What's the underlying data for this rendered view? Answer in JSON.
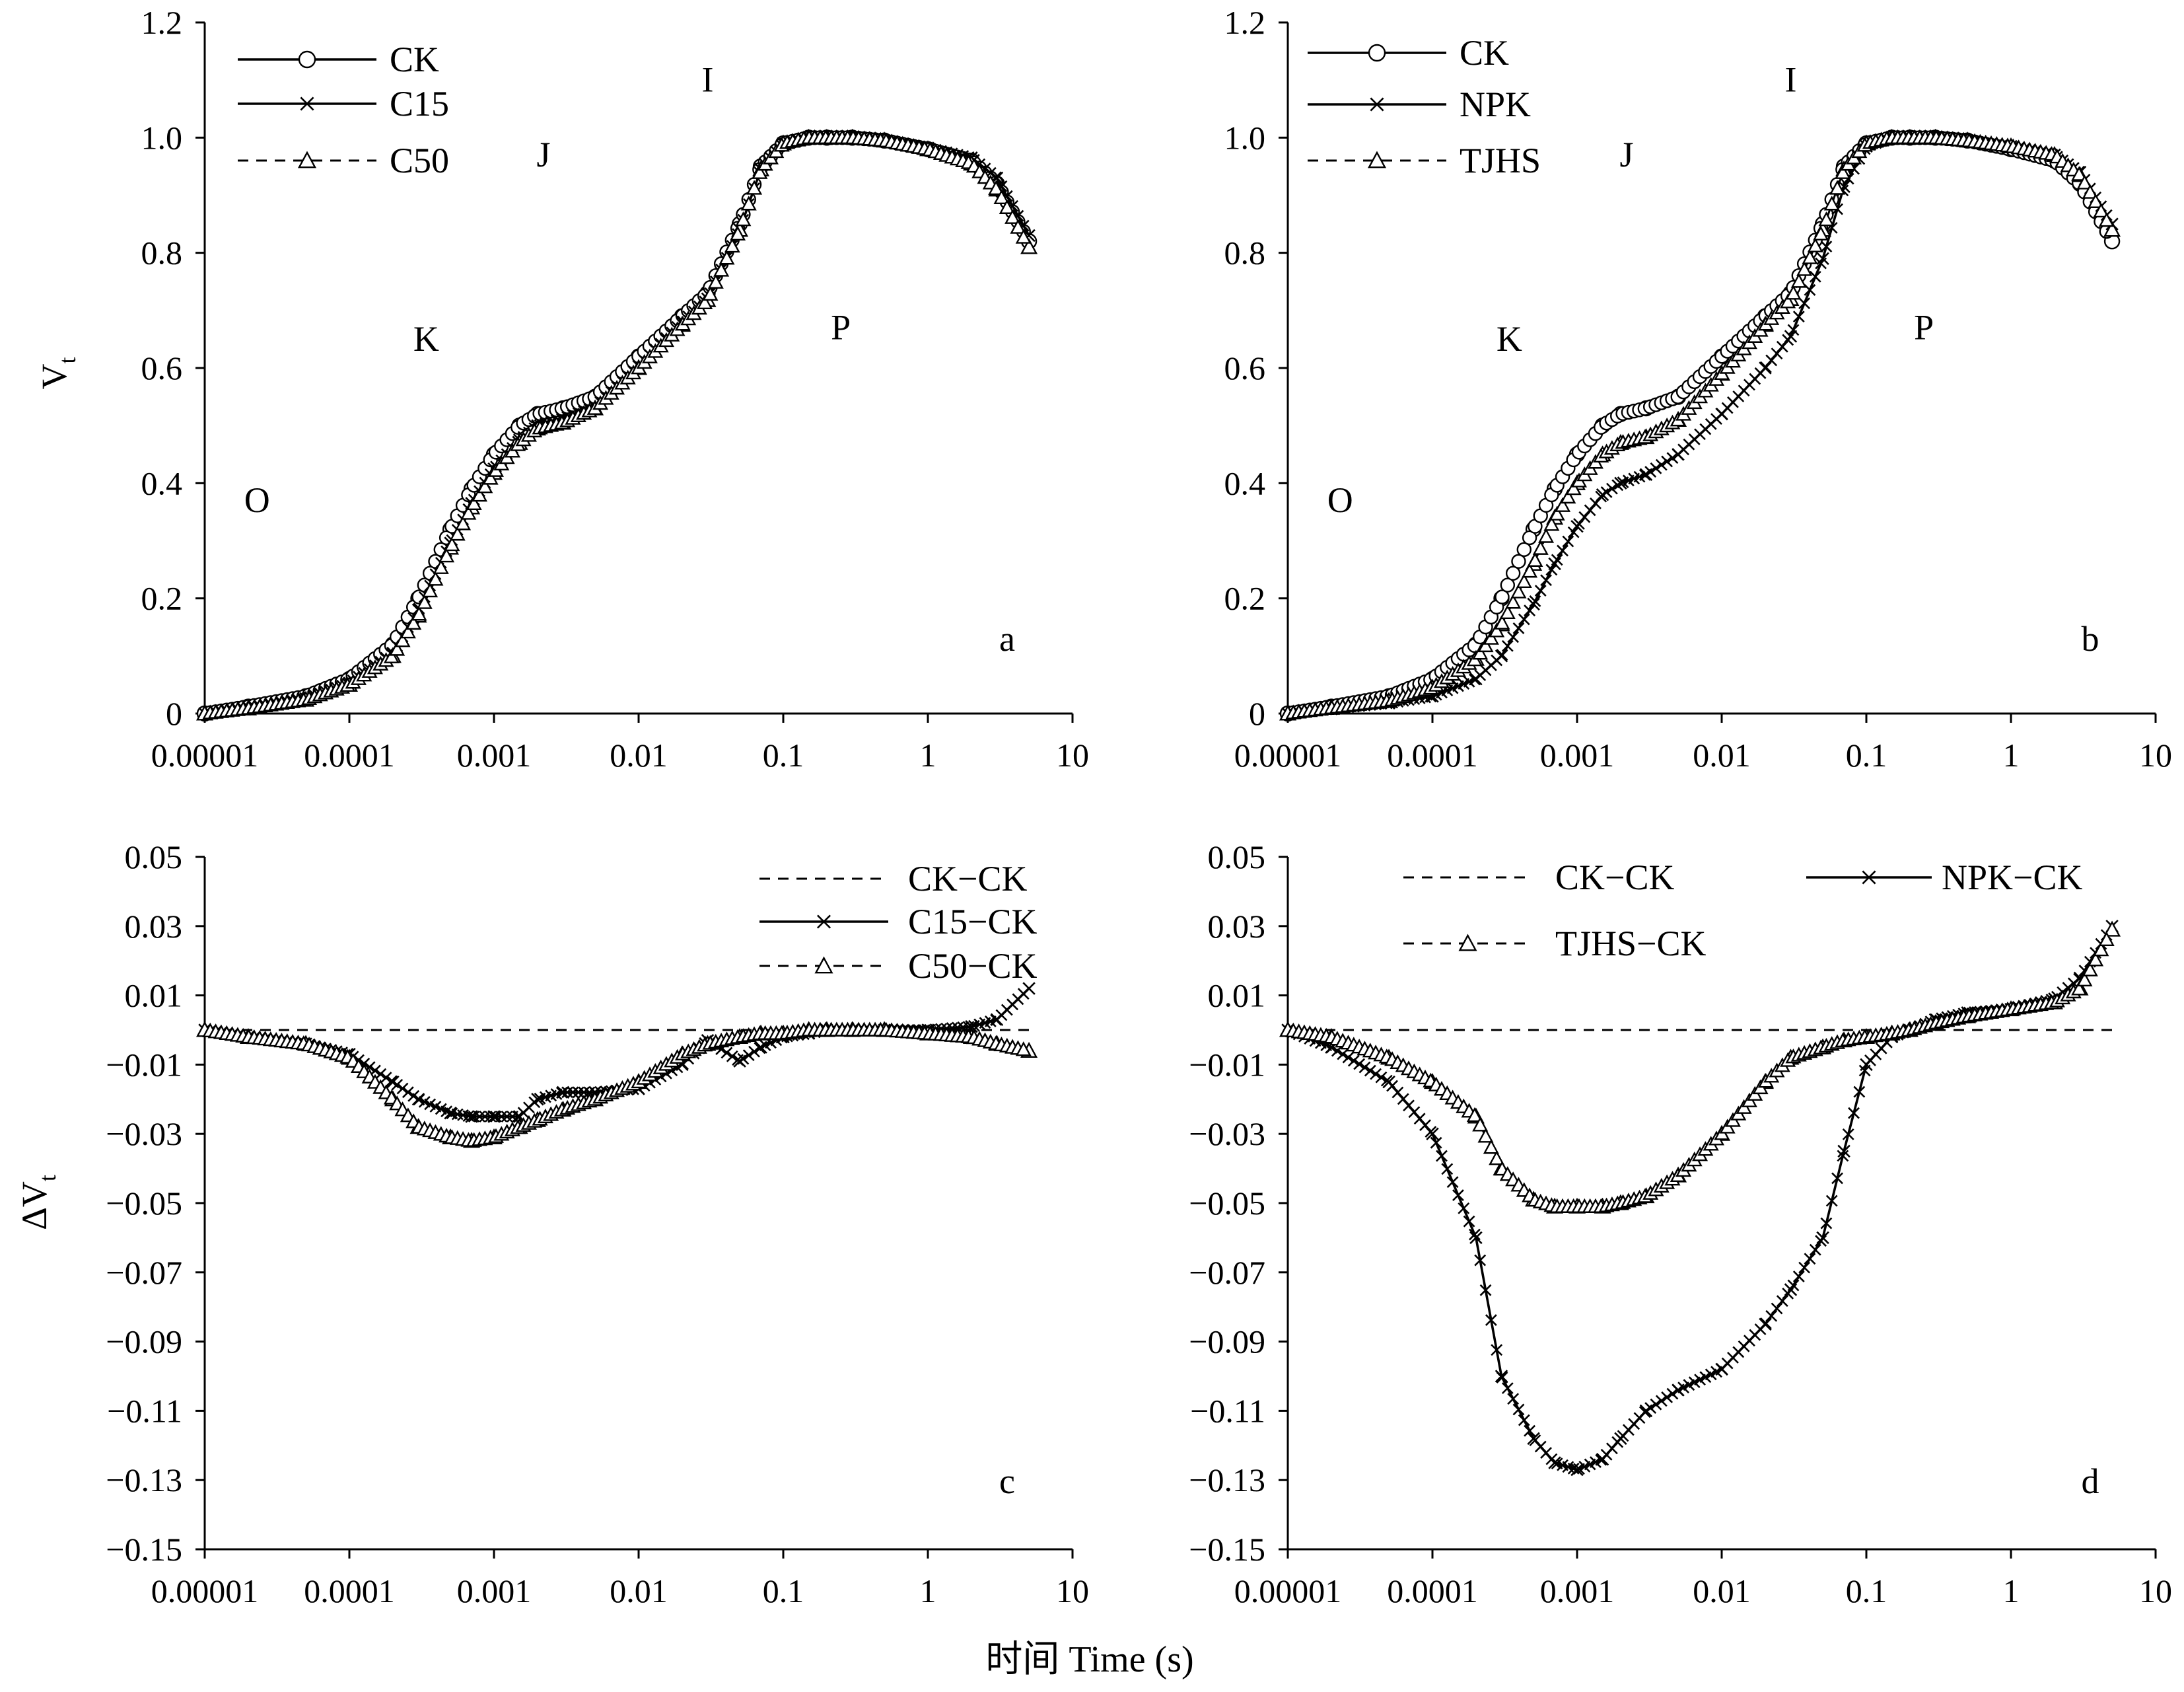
{
  "figure": {
    "xlabel": "时间 Time (s)",
    "colors": {
      "line": "#000000",
      "marker_fill": "#ffffff",
      "background": "#ffffff"
    }
  },
  "chart_data": [
    {
      "panel": "a",
      "type": "line",
      "xscale": "log",
      "xlim": [
        1e-05,
        10
      ],
      "ylim": [
        0,
        1.2
      ],
      "x_ticks": [
        "0.00001",
        "0.0001",
        "0.001",
        "0.01",
        "0.1",
        "1",
        "10"
      ],
      "y_ticks": [
        "0",
        "0.2",
        "0.4",
        "0.6",
        "0.8",
        "1.0",
        "1.2"
      ],
      "ylabel": "Vt",
      "phase_labels": [
        {
          "text": "O",
          "x": 2.3e-05,
          "y": 0.35
        },
        {
          "text": "K",
          "x": 0.00034,
          "y": 0.63
        },
        {
          "text": "J",
          "x": 0.0022,
          "y": 0.95
        },
        {
          "text": "I",
          "x": 0.03,
          "y": 1.08
        },
        {
          "text": "P",
          "x": 0.25,
          "y": 0.65
        }
      ],
      "legend": {
        "position": "top-left"
      },
      "series": [
        {
          "name": "CK",
          "style": "solid",
          "marker": "circle",
          "x": [
            1e-05,
            2e-05,
            5e-05,
            0.0001,
            0.0002,
            0.0003,
            0.0005,
            0.0007,
            0.001,
            0.0015,
            0.002,
            0.003,
            0.005,
            0.01,
            0.02,
            0.03,
            0.05,
            0.07,
            0.1,
            0.15,
            0.2,
            0.3,
            0.5,
            1,
            2,
            3,
            5
          ],
          "y": [
            0,
            0.012,
            0.03,
            0.06,
            0.12,
            0.2,
            0.32,
            0.39,
            0.45,
            0.5,
            0.52,
            0.53,
            0.55,
            0.62,
            0.69,
            0.73,
            0.85,
            0.95,
            0.99,
            1.0,
            1.0,
            1.0,
            0.995,
            0.98,
            0.96,
            0.92,
            0.82
          ]
        },
        {
          "name": "C15",
          "style": "solid",
          "marker": "x",
          "x": [
            1e-05,
            2e-05,
            5e-05,
            0.0001,
            0.0002,
            0.0003,
            0.0005,
            0.0007,
            0.001,
            0.0015,
            0.002,
            0.003,
            0.005,
            0.01,
            0.02,
            0.03,
            0.05,
            0.07,
            0.1,
            0.15,
            0.2,
            0.3,
            0.5,
            1,
            2,
            3,
            5
          ],
          "y": [
            0,
            0.01,
            0.026,
            0.053,
            0.105,
            0.18,
            0.296,
            0.365,
            0.425,
            0.475,
            0.5,
            0.512,
            0.532,
            0.603,
            0.68,
            0.72,
            0.84,
            0.945,
            0.99,
            1.0,
            1.0,
            1.0,
            0.995,
            0.982,
            0.965,
            0.93,
            0.83
          ]
        },
        {
          "name": "C50",
          "style": "dashed",
          "marker": "triangle",
          "x": [
            1e-05,
            2e-05,
            5e-05,
            0.0001,
            0.0002,
            0.0003,
            0.0005,
            0.0007,
            0.001,
            0.0015,
            0.002,
            0.003,
            0.005,
            0.01,
            0.02,
            0.03,
            0.05,
            0.07,
            0.1,
            0.15,
            0.2,
            0.3,
            0.5,
            1,
            2,
            3,
            5
          ],
          "y": [
            0,
            0.009,
            0.024,
            0.05,
            0.1,
            0.17,
            0.288,
            0.358,
            0.418,
            0.47,
            0.495,
            0.505,
            0.53,
            0.6,
            0.675,
            0.718,
            0.84,
            0.945,
            0.99,
            1.0,
            1.0,
            1.0,
            0.995,
            0.98,
            0.955,
            0.91,
            0.81
          ]
        }
      ]
    },
    {
      "panel": "b",
      "type": "line",
      "xscale": "log",
      "xlim": [
        1e-05,
        10
      ],
      "ylim": [
        0,
        1.2
      ],
      "x_ticks": [
        "0.00001",
        "0.0001",
        "0.001",
        "0.01",
        "0.1",
        "1",
        "10"
      ],
      "y_ticks": [
        "0",
        "0.2",
        "0.4",
        "0.6",
        "0.8",
        "1.0",
        "1.2"
      ],
      "ylabel": "",
      "phase_labels": [
        {
          "text": "O",
          "x": 2.3e-05,
          "y": 0.35
        },
        {
          "text": "K",
          "x": 0.00034,
          "y": 0.63
        },
        {
          "text": "J",
          "x": 0.0022,
          "y": 0.95
        },
        {
          "text": "I",
          "x": 0.03,
          "y": 1.08
        },
        {
          "text": "P",
          "x": 0.25,
          "y": 0.65
        }
      ],
      "legend": {
        "position": "top-left"
      },
      "series": [
        {
          "name": "CK",
          "style": "solid",
          "marker": "circle",
          "x": [
            1e-05,
            2e-05,
            5e-05,
            0.0001,
            0.0002,
            0.0003,
            0.0005,
            0.0007,
            0.001,
            0.0015,
            0.002,
            0.003,
            0.005,
            0.01,
            0.02,
            0.03,
            0.05,
            0.07,
            0.1,
            0.15,
            0.2,
            0.3,
            0.5,
            1,
            2,
            3,
            5
          ],
          "y": [
            0,
            0.012,
            0.03,
            0.06,
            0.12,
            0.2,
            0.32,
            0.39,
            0.45,
            0.5,
            0.52,
            0.53,
            0.55,
            0.62,
            0.69,
            0.73,
            0.85,
            0.95,
            0.99,
            1.0,
            1.0,
            1.0,
            0.995,
            0.98,
            0.96,
            0.92,
            0.82
          ]
        },
        {
          "name": "NPK",
          "style": "solid",
          "marker": "x",
          "x": [
            1e-05,
            2e-05,
            5e-05,
            0.0001,
            0.0002,
            0.0003,
            0.0005,
            0.0007,
            0.001,
            0.0015,
            0.002,
            0.003,
            0.005,
            0.01,
            0.02,
            0.03,
            0.05,
            0.07,
            0.1,
            0.15,
            0.2,
            0.3,
            0.5,
            1,
            2,
            3,
            5
          ],
          "y": [
            0,
            0.008,
            0.018,
            0.03,
            0.06,
            0.1,
            0.19,
            0.26,
            0.325,
            0.38,
            0.4,
            0.415,
            0.45,
            0.52,
            0.6,
            0.655,
            0.79,
            0.915,
            0.985,
            1.0,
            1.0,
            1.0,
            0.995,
            0.985,
            0.97,
            0.94,
            0.85
          ]
        },
        {
          "name": "TJHS",
          "style": "dashed",
          "marker": "triangle",
          "x": [
            1e-05,
            2e-05,
            5e-05,
            0.0001,
            0.0002,
            0.0003,
            0.0005,
            0.0007,
            0.001,
            0.0015,
            0.002,
            0.003,
            0.005,
            0.01,
            0.02,
            0.03,
            0.05,
            0.07,
            0.1,
            0.15,
            0.2,
            0.3,
            0.5,
            1,
            2,
            3,
            5
          ],
          "y": [
            0,
            0.01,
            0.022,
            0.045,
            0.095,
            0.155,
            0.26,
            0.34,
            0.4,
            0.45,
            0.47,
            0.48,
            0.51,
            0.59,
            0.675,
            0.72,
            0.84,
            0.945,
            0.99,
            1.0,
            1.0,
            1.0,
            0.995,
            0.985,
            0.97,
            0.935,
            0.84
          ]
        }
      ]
    },
    {
      "panel": "c",
      "type": "line",
      "xscale": "log",
      "xlim": [
        1e-05,
        10
      ],
      "ylim": [
        -0.15,
        0.05
      ],
      "x_ticks": [
        "0.00001",
        "0.0001",
        "0.001",
        "0.01",
        "0.1",
        "1",
        "10"
      ],
      "y_ticks": [
        "0.05",
        "0.03",
        "0.01",
        "−0.01",
        "−0.03",
        "−0.05",
        "−0.07",
        "−0.09",
        "−0.11",
        "−0.13",
        "−0.15"
      ],
      "ylabel": "ΔVt",
      "legend": {
        "position": "top-right"
      },
      "series": [
        {
          "name": "CK−CK",
          "style": "dashed",
          "marker": "none",
          "x": [
            1e-05,
            5
          ],
          "y": [
            0,
            0
          ]
        },
        {
          "name": "C15−CK",
          "style": "solid",
          "marker": "x",
          "x": [
            1e-05,
            2e-05,
            5e-05,
            0.0001,
            0.0002,
            0.0003,
            0.0005,
            0.0007,
            0.001,
            0.0015,
            0.002,
            0.003,
            0.005,
            0.01,
            0.02,
            0.03,
            0.05,
            0.07,
            0.1,
            0.15,
            0.2,
            0.3,
            0.5,
            1,
            2,
            3,
            5
          ],
          "y": [
            0,
            -0.002,
            -0.004,
            -0.007,
            -0.015,
            -0.02,
            -0.024,
            -0.025,
            -0.025,
            -0.025,
            -0.02,
            -0.018,
            -0.018,
            -0.017,
            -0.01,
            -0.003,
            -0.009,
            -0.005,
            -0.002,
            -0.001,
            0,
            0,
            0,
            0,
            0.001,
            0.003,
            0.012
          ]
        },
        {
          "name": "C50−CK",
          "style": "dashed",
          "marker": "triangle",
          "x": [
            1e-05,
            2e-05,
            5e-05,
            0.0001,
            0.0002,
            0.0003,
            0.0005,
            0.0007,
            0.001,
            0.0015,
            0.002,
            0.003,
            0.005,
            0.01,
            0.02,
            0.03,
            0.05,
            0.07,
            0.1,
            0.15,
            0.2,
            0.3,
            0.5,
            1,
            2,
            3,
            5
          ],
          "y": [
            0,
            -0.002,
            -0.004,
            -0.008,
            -0.02,
            -0.028,
            -0.031,
            -0.032,
            -0.031,
            -0.028,
            -0.026,
            -0.023,
            -0.02,
            -0.015,
            -0.007,
            -0.004,
            -0.002,
            -0.001,
            -0.001,
            0,
            0,
            0,
            0,
            -0.001,
            -0.002,
            -0.004,
            -0.006
          ]
        }
      ]
    },
    {
      "panel": "d",
      "type": "line",
      "xscale": "log",
      "xlim": [
        1e-05,
        10
      ],
      "ylim": [
        -0.15,
        0.05
      ],
      "x_ticks": [
        "0.00001",
        "0.0001",
        "0.001",
        "0.01",
        "0.1",
        "1",
        "10"
      ],
      "y_ticks": [
        "0.05",
        "0.03",
        "0.01",
        "−0.01",
        "−0.03",
        "−0.05",
        "−0.07",
        "−0.09",
        "−0.11",
        "−0.13",
        "−0.15"
      ],
      "ylabel": "",
      "legend": {
        "position": "top-right"
      },
      "series": [
        {
          "name": "CK−CK",
          "style": "dashed",
          "marker": "none",
          "x": [
            1e-05,
            5
          ],
          "y": [
            0,
            0
          ]
        },
        {
          "name": "NPK−CK",
          "style": "solid",
          "marker": "x",
          "x": [
            1e-05,
            2e-05,
            5e-05,
            0.0001,
            0.0002,
            0.0003,
            0.0005,
            0.0007,
            0.001,
            0.0015,
            0.002,
            0.003,
            0.005,
            0.01,
            0.02,
            0.03,
            0.05,
            0.07,
            0.1,
            0.15,
            0.2,
            0.3,
            0.5,
            1,
            2,
            3,
            5
          ],
          "y": [
            0,
            -0.005,
            -0.015,
            -0.03,
            -0.06,
            -0.1,
            -0.118,
            -0.125,
            -0.127,
            -0.124,
            -0.118,
            -0.11,
            -0.104,
            -0.098,
            -0.085,
            -0.075,
            -0.06,
            -0.035,
            -0.01,
            -0.002,
            0,
            0.003,
            0.005,
            0.006,
            0.009,
            0.015,
            0.03
          ]
        },
        {
          "name": "TJHS−CK",
          "style": "dashed",
          "marker": "triangle",
          "x": [
            1e-05,
            2e-05,
            5e-05,
            0.0001,
            0.0002,
            0.0003,
            0.0005,
            0.0007,
            0.001,
            0.0015,
            0.002,
            0.003,
            0.005,
            0.01,
            0.02,
            0.03,
            0.05,
            0.07,
            0.1,
            0.15,
            0.2,
            0.3,
            0.5,
            1,
            2,
            3,
            5
          ],
          "y": [
            0,
            -0.002,
            -0.008,
            -0.015,
            -0.025,
            -0.04,
            -0.049,
            -0.051,
            -0.051,
            -0.051,
            -0.05,
            -0.048,
            -0.042,
            -0.03,
            -0.015,
            -0.008,
            -0.005,
            -0.003,
            -0.002,
            -0.001,
            0,
            0.002,
            0.004,
            0.006,
            0.008,
            0.012,
            0.029
          ]
        }
      ]
    }
  ]
}
